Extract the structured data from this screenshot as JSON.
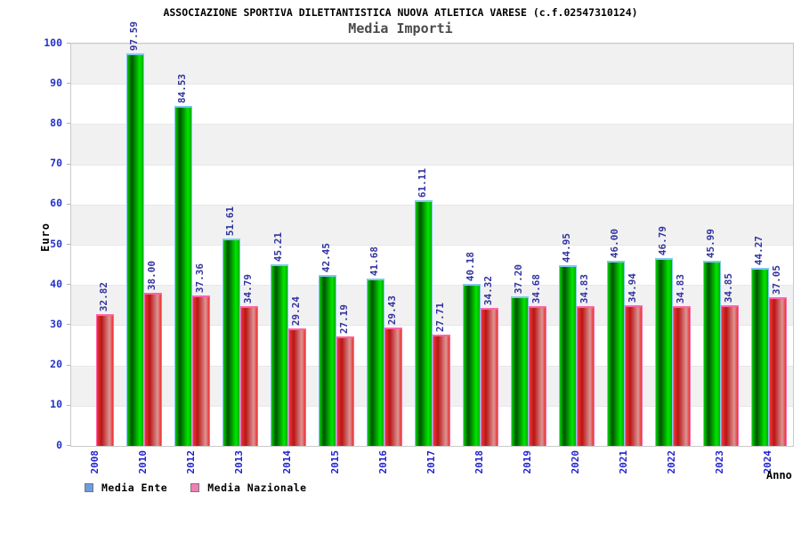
{
  "chart_data": {
    "type": "bar",
    "title": "ASSOCIAZIONE SPORTIVA DILETTANTISTICA NUOVA ATLETICA VARESE (c.f.02547310124)",
    "subtitle": "Media Importi",
    "xlabel": "Anno",
    "ylabel": "Euro",
    "ylim": [
      0,
      100
    ],
    "ytick_step": 10,
    "yticks": [
      0,
      10,
      20,
      30,
      40,
      50,
      60,
      70,
      80,
      90,
      100
    ],
    "grid": "alternating-horizontal-bands",
    "legend_position": "bottom-left",
    "value_labels": "rotated-90-two-decimals",
    "categories": [
      "2008",
      "2010",
      "2012",
      "2013",
      "2014",
      "2015",
      "2016",
      "2017",
      "2018",
      "2019",
      "2020",
      "2021",
      "2022",
      "2023",
      "2024"
    ],
    "series": [
      {
        "name": "Media Ente",
        "values": [
          null,
          97.59,
          84.53,
          51.61,
          45.21,
          42.45,
          41.68,
          61.11,
          40.18,
          37.2,
          44.95,
          46.0,
          46.79,
          45.99,
          44.27
        ],
        "bar_gradient": [
          "#00cf00",
          "#005200",
          "#00e600",
          "#00ad00"
        ],
        "cap_color": "#7cc8f0",
        "legend_swatch": "#6c9ddc"
      },
      {
        "name": "Media Nazionale",
        "values": [
          32.82,
          38.0,
          37.36,
          34.79,
          29.24,
          27.19,
          29.43,
          27.71,
          34.32,
          34.68,
          34.83,
          34.94,
          34.83,
          34.85,
          37.05
        ],
        "bar_gradient": [
          "#ef3636",
          "#b81515",
          "#dc9595",
          "#ee3232"
        ],
        "cap_color": "#ff63a8",
        "legend_swatch": "#f07fb5"
      }
    ],
    "colors": {
      "axis_text": "#2233cc",
      "value_label_text": "#3333a0",
      "band_fill": "#f1f1f1",
      "plot_border": "#c9c9c9",
      "subtitle_text": "#4a4a4a"
    }
  }
}
